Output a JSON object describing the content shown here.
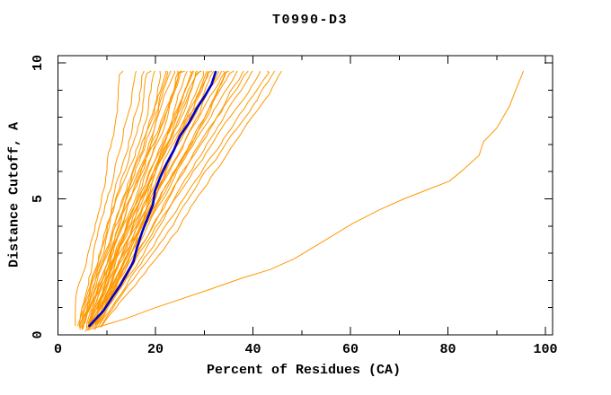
{
  "page": {
    "background": "#ffffff"
  },
  "chart_data": {
    "type": "line",
    "title": "T0990-D3",
    "xlabel": "Percent of Residues (CA)",
    "ylabel": "Distance Cutoff, A",
    "xlim": [
      0,
      100
    ],
    "ylim": [
      0,
      10
    ],
    "x_major_ticks": [
      0,
      20,
      40,
      60,
      80,
      100
    ],
    "x_minor_ticks": [
      10,
      30,
      50,
      70,
      90
    ],
    "y_major_ticks": [
      0,
      5,
      10
    ],
    "y_minor_ticks": [
      1,
      2,
      3,
      4,
      6,
      7,
      8,
      9
    ],
    "grid": false,
    "legend": null,
    "frame": "full box, ticks pointing inward on all four sides",
    "colors": {
      "model_lines": "#FF9800",
      "highlight_line": "#0000CD",
      "frame": "#000000",
      "text": "#000000",
      "background": "#FFFFFF"
    },
    "anchor_cutoffs": [
      0.3,
      2,
      4,
      6,
      8,
      9.7
    ],
    "model_lines": [
      [
        3.6,
        5.2,
        8.0,
        10.5,
        12.5,
        13.5
      ],
      [
        4.0,
        6.0,
        9.0,
        12.0,
        14.5,
        16.0
      ],
      [
        4.2,
        6.5,
        9.5,
        13.0,
        16.0,
        17.5
      ],
      [
        4.5,
        7.0,
        10.0,
        13.5,
        17.0,
        19.0
      ],
      [
        4.4,
        7.5,
        10.5,
        14.0,
        18.0,
        20.0
      ],
      [
        4.8,
        7.8,
        11.0,
        15.0,
        19.0,
        21.0
      ],
      [
        5.0,
        8.0,
        11.5,
        15.5,
        19.5,
        22.0
      ],
      [
        5.2,
        8.2,
        12.0,
        16.0,
        20.0,
        22.5
      ],
      [
        5.4,
        8.5,
        12.0,
        16.5,
        20.5,
        23.0
      ],
      [
        5.5,
        8.8,
        12.5,
        17.0,
        21.0,
        24.0
      ],
      [
        5.6,
        9.0,
        13.0,
        17.0,
        21.5,
        24.5
      ],
      [
        5.8,
        9.2,
        13.0,
        17.5,
        22.0,
        25.0
      ],
      [
        6.0,
        9.5,
        13.5,
        18.0,
        22.5,
        25.5
      ],
      [
        6.0,
        9.8,
        14.0,
        18.0,
        23.0,
        26.0
      ],
      [
        6.2,
        10.0,
        14.0,
        18.5,
        23.5,
        26.5
      ],
      [
        6.2,
        10.0,
        14.5,
        19.0,
        24.0,
        27.0
      ],
      [
        6.4,
        10.2,
        14.5,
        19.0,
        24.0,
        27.5
      ],
      [
        6.5,
        10.5,
        15.0,
        19.5,
        24.5,
        28.0
      ],
      [
        6.5,
        10.5,
        15.0,
        20.0,
        25.0,
        28.5
      ],
      [
        6.6,
        10.8,
        15.5,
        20.0,
        25.5,
        29.0
      ],
      [
        6.8,
        11.0,
        15.5,
        20.5,
        26.0,
        29.5
      ],
      [
        6.8,
        11.0,
        16.0,
        21.0,
        26.0,
        30.0
      ],
      [
        7.0,
        11.2,
        16.0,
        21.0,
        26.5,
        30.5
      ],
      [
        7.0,
        11.5,
        16.5,
        21.5,
        27.0,
        31.0
      ],
      [
        7.2,
        11.5,
        16.5,
        22.0,
        27.5,
        31.5
      ],
      [
        7.2,
        11.8,
        17.0,
        22.0,
        28.0,
        32.0
      ],
      [
        7.4,
        12.0,
        17.0,
        22.5,
        28.5,
        33.0
      ],
      [
        7.5,
        12.0,
        17.5,
        23.0,
        29.0,
        34.0
      ],
      [
        7.5,
        12.2,
        17.5,
        23.5,
        30.0,
        35.0
      ],
      [
        7.6,
        12.5,
        18.0,
        24.0,
        30.5,
        36.0
      ],
      [
        7.8,
        12.5,
        18.5,
        24.5,
        31.0,
        37.0
      ],
      [
        7.8,
        12.8,
        19.0,
        25.0,
        32.0,
        38.0
      ],
      [
        8.0,
        13.0,
        19.5,
        26.0,
        33.0,
        39.0
      ],
      [
        8.0,
        13.5,
        20.0,
        27.0,
        34.0,
        40.0
      ],
      [
        8.2,
        14.0,
        21.0,
        28.0,
        35.5,
        41.5
      ],
      [
        8.5,
        14.5,
        22.0,
        29.0,
        37.0,
        43.0
      ],
      [
        8.8,
        15.5,
        23.5,
        30.5,
        38.5,
        44.5
      ],
      [
        9.0,
        16.5,
        25.0,
        32.0,
        40.0,
        46.0
      ],
      [
        5.0,
        9.0,
        14.0,
        19.5,
        26.5,
        33.5
      ],
      [
        6.0,
        11.0,
        17.5,
        24.0,
        30.0,
        34.5
      ]
    ],
    "highlight_line": [
      [
        6.3,
        0.3
      ],
      [
        9.4,
        0.9
      ],
      [
        11.2,
        1.4
      ],
      [
        12.7,
        1.8
      ],
      [
        14.0,
        2.2
      ],
      [
        15.5,
        2.7
      ],
      [
        16.2,
        3.2
      ],
      [
        17.3,
        3.8
      ],
      [
        18.2,
        4.2
      ],
      [
        19.5,
        4.8
      ],
      [
        19.9,
        5.3
      ],
      [
        21.0,
        5.8
      ],
      [
        22.3,
        6.3
      ],
      [
        23.8,
        6.8
      ],
      [
        25.0,
        7.3
      ],
      [
        26.9,
        7.8
      ],
      [
        28.4,
        8.3
      ],
      [
        30.2,
        8.8
      ],
      [
        31.5,
        9.2
      ],
      [
        32.4,
        9.7
      ]
    ],
    "outlier_line": [
      [
        5.5,
        0.15
      ],
      [
        9.4,
        0.35
      ],
      [
        14.0,
        0.6
      ],
      [
        20.0,
        1.0
      ],
      [
        30.0,
        1.6
      ],
      [
        38.0,
        2.1
      ],
      [
        43.5,
        2.4
      ],
      [
        48.5,
        2.8
      ],
      [
        55.0,
        3.5
      ],
      [
        60.5,
        4.1
      ],
      [
        66.0,
        4.6
      ],
      [
        71.0,
        5.0
      ],
      [
        76.0,
        5.35
      ],
      [
        80.3,
        5.65
      ],
      [
        82.7,
        6.0
      ],
      [
        86.4,
        6.6
      ],
      [
        87.3,
        7.1
      ],
      [
        90.0,
        7.6
      ],
      [
        92.6,
        8.4
      ],
      [
        93.7,
        8.9
      ],
      [
        95.5,
        9.7
      ]
    ]
  }
}
